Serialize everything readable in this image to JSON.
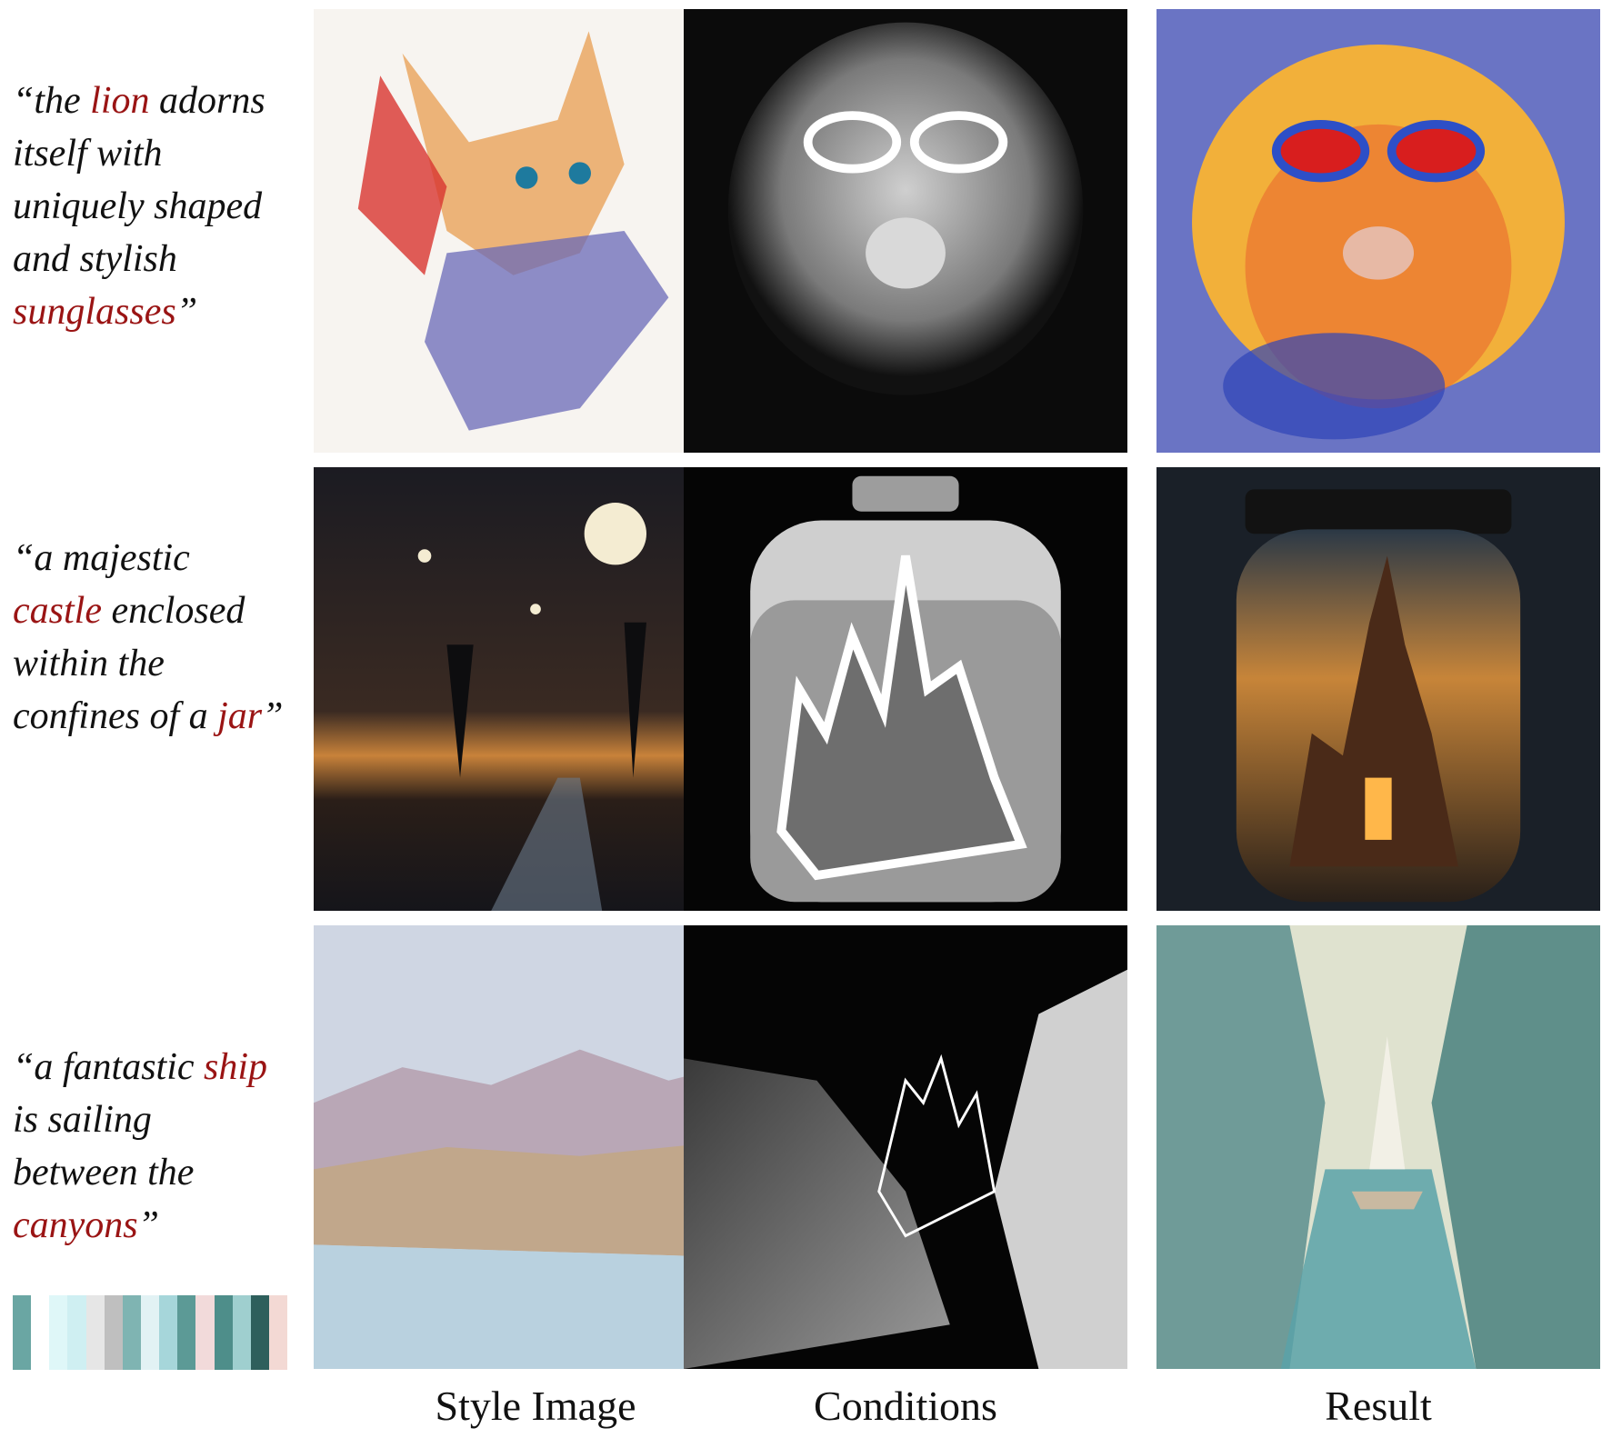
{
  "prompts": [
    {
      "parts": [
        {
          "text": "“the ",
          "hl": false
        },
        {
          "text": "lion",
          "hl": true
        },
        {
          "text": " adorns itself with uniquely shaped and stylish ",
          "hl": false
        },
        {
          "text": "sunglasses",
          "hl": true
        },
        {
          "text": "”",
          "hl": false
        }
      ]
    },
    {
      "parts": [
        {
          "text": "“a majestic ",
          "hl": false
        },
        {
          "text": "castle",
          "hl": true
        },
        {
          "text": " enclosed within the confines of a ",
          "hl": false
        },
        {
          "text": "jar",
          "hl": true
        },
        {
          "text": "”",
          "hl": false
        }
      ]
    },
    {
      "parts": [
        {
          "text": "“a fantastic ",
          "hl": false
        },
        {
          "text": "ship",
          "hl": true
        },
        {
          "text": " is sailing between the ",
          "hl": false
        },
        {
          "text": "canyons",
          "hl": true
        },
        {
          "text": "”",
          "hl": false
        }
      ]
    }
  ],
  "columns": {
    "style": "Style Image",
    "conditions": "Conditions",
    "result": "Result"
  },
  "colors": {
    "highlight": "#9a1414",
    "palette": [
      "#6aa6a3",
      "#ffffff",
      "#dff7f8",
      "#cfeff2",
      "#e6e6e6",
      "#bfbfbf",
      "#7fb4b2",
      "#e2f2f4",
      "#a6d6da",
      "#5c9a96",
      "#f2dada",
      "#4e8e8a",
      "#9fcfcf",
      "#2e5f5c",
      "#f3d9d4"
    ]
  }
}
